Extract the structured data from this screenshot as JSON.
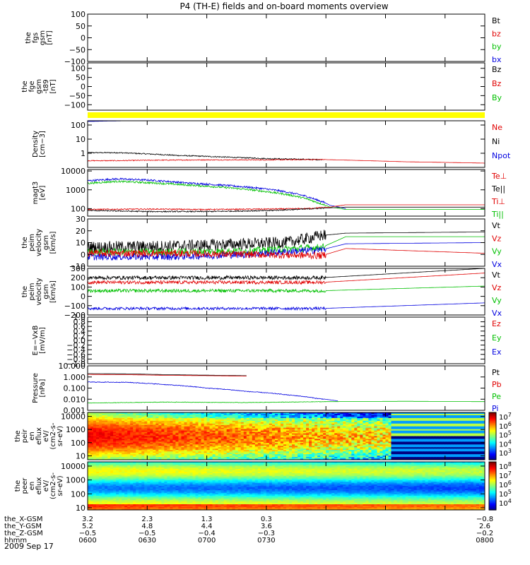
{
  "title": "P4 (TH-E) fields and on-board moments overview",
  "date": "2009 Sep 17",
  "colors": {
    "black": "#000000",
    "red": "#e00000",
    "green": "#00c000",
    "blue": "#0000e0",
    "yellow": "#ffff00"
  },
  "chart_data": [
    {
      "type": "line",
      "id": "fgs",
      "ylabel_lines": [
        "the",
        "fgs",
        "gsm",
        "[nT]"
      ],
      "ylim": [
        -100,
        100
      ],
      "yticks": [
        "100",
        "50",
        "0",
        "−50",
        "−100"
      ],
      "yvalues": [
        100,
        50,
        0,
        -50,
        -100
      ],
      "legend": [
        {
          "name": "Bt",
          "color": "black"
        },
        {
          "name": "bz",
          "color": "red"
        },
        {
          "name": "by",
          "color": "green"
        },
        {
          "name": "bx",
          "color": "blue"
        }
      ],
      "series": []
    },
    {
      "type": "line",
      "id": "fge",
      "ylabel_lines": [
        "the",
        "fge",
        "gsm",
        "-t89",
        "[nT]"
      ],
      "ylim": [
        -130,
        130
      ],
      "yticks": [
        "100",
        "50",
        "0",
        "−50",
        "−100"
      ],
      "yvalues": [
        100,
        50,
        0,
        -50,
        -100
      ],
      "legend": [
        {
          "name": "Bz",
          "color": "black"
        },
        {
          "name": "Bz",
          "color": "red"
        },
        {
          "name": "By",
          "color": "green"
        }
      ],
      "series": []
    },
    {
      "type": "bar",
      "id": "mode-bar",
      "color": "yellow"
    },
    {
      "type": "line",
      "id": "density",
      "yscale": "log",
      "ylabel_lines": [
        "Density",
        "[cm−3]"
      ],
      "ylim": [
        0.1,
        200
      ],
      "yticks": [
        "100",
        "10",
        "1"
      ],
      "yvalues": [
        100,
        10,
        1
      ],
      "legend": [
        {
          "name": "Ne",
          "color": "red"
        },
        {
          "name": "Ni",
          "color": "black"
        },
        {
          "name": "Npot",
          "color": "blue"
        }
      ],
      "series": [
        {
          "color": "black",
          "x": [
            600,
            615,
            630,
            645,
            660,
            675,
            690,
            705,
            718
          ],
          "y": [
            1.1,
            1.1,
            0.9,
            0.7,
            0.6,
            0.5,
            0.42,
            0.38,
            0.35
          ],
          "noise": 0.04
        },
        {
          "color": "red",
          "x": [
            600,
            615,
            630,
            660,
            690,
            718,
            740,
            760,
            800
          ],
          "y": [
            0.3,
            0.3,
            0.32,
            0.34,
            0.34,
            0.36,
            0.3,
            0.25,
            0.2
          ],
          "noise": 0.03
        },
        {
          "color": "blue",
          "x": [
            600,
            620
          ],
          "y": [
            180,
            200
          ],
          "noise": 0.0
        }
      ]
    },
    {
      "type": "line",
      "id": "temperature",
      "yscale": "log",
      "ylabel_lines": [
        "magt3",
        "[eV]"
      ],
      "ylim": [
        40,
        12000
      ],
      "yticks": [
        "10000",
        "1000",
        "100"
      ],
      "yvalues": [
        10000,
        1000,
        100
      ],
      "legend": [
        {
          "name": "Te⊥",
          "color": "red"
        },
        {
          "name": "Te||",
          "color": "black"
        },
        {
          "name": "Ti⊥",
          "color": "red"
        },
        {
          "name": "Ti||",
          "color": "green"
        }
      ],
      "series": [
        {
          "color": "blue",
          "x": [
            600,
            615,
            630,
            650,
            670,
            690,
            705,
            715,
            722,
            730
          ],
          "y": [
            3000,
            3800,
            3300,
            2300,
            1700,
            1100,
            600,
            300,
            150,
            100
          ],
          "noise": 0.05
        },
        {
          "color": "green",
          "x": [
            600,
            615,
            630,
            650,
            670,
            690,
            705,
            715,
            722,
            730,
            800
          ],
          "y": [
            2200,
            2800,
            2400,
            1800,
            1300,
            800,
            450,
            220,
            120,
            90,
            90
          ],
          "noise": 0.05
        },
        {
          "color": "red",
          "x": [
            600,
            630,
            660,
            690,
            710,
            722,
            730,
            800
          ],
          "y": [
            90,
            95,
            90,
            95,
            100,
            120,
            160,
            160
          ],
          "noise": 0.03
        },
        {
          "color": "black",
          "x": [
            600,
            630,
            660,
            690,
            710,
            722,
            730,
            800
          ],
          "y": [
            80,
            70,
            70,
            78,
            95,
            110,
            120,
            120
          ],
          "noise": 0.03
        }
      ]
    },
    {
      "type": "line",
      "id": "velocity-esa",
      "ylabel_lines": [
        "the",
        "peim",
        "velocity",
        "gsm",
        "[km/s]"
      ],
      "ylim": [
        -10,
        30
      ],
      "yticks": [
        "30",
        "20",
        "10",
        "0",
        "−10"
      ],
      "yvalues": [
        30,
        20,
        10,
        0,
        -10
      ],
      "legend": [
        {
          "name": "Vt",
          "color": "black"
        },
        {
          "name": "Vz",
          "color": "red"
        },
        {
          "name": "Vy",
          "color": "green"
        },
        {
          "name": "Vx",
          "color": "blue"
        }
      ],
      "series": [
        {
          "color": "black",
          "x": [
            600,
            640,
            680,
            700,
            718,
            730,
            800
          ],
          "y": [
            6,
            7,
            9,
            10,
            16,
            18,
            19
          ],
          "noise": 5.0
        },
        {
          "color": "green",
          "x": [
            600,
            640,
            680,
            718,
            730,
            800
          ],
          "y": [
            2,
            2,
            3,
            6,
            15,
            15
          ],
          "noise": 3.0
        },
        {
          "color": "blue",
          "x": [
            600,
            640,
            680,
            718,
            730,
            800
          ],
          "y": [
            -2,
            -2,
            0,
            4,
            9,
            10
          ],
          "noise": 3.0
        },
        {
          "color": "red",
          "x": [
            600,
            640,
            680,
            718,
            730,
            800
          ],
          "y": [
            1,
            1,
            0,
            -1,
            5,
            1
          ],
          "noise": 3.0
        }
      ]
    },
    {
      "type": "line",
      "id": "velocity-mom",
      "ylabel_lines": [
        "the",
        "peim",
        "velocity",
        "gsm",
        "[km/s]"
      ],
      "ylim": [
        -200,
        300
      ],
      "yticks": [
        "300",
        "200",
        "100",
        "0",
        "−100",
        "−200"
      ],
      "yvalues": [
        300,
        200,
        100,
        0,
        -100,
        -200
      ],
      "legend": [
        {
          "name": "Vt",
          "color": "black"
        },
        {
          "name": "Vz",
          "color": "red"
        },
        {
          "name": "Vy",
          "color": "green"
        },
        {
          "name": "Vx",
          "color": "blue"
        }
      ],
      "series": [
        {
          "color": "black",
          "x": [
            600,
            718,
            800
          ],
          "y": [
            200,
            200,
            300
          ],
          "noise": 20.0
        },
        {
          "color": "red",
          "x": [
            600,
            718,
            800
          ],
          "y": [
            150,
            150,
            250
          ],
          "noise": 18.0
        },
        {
          "color": "green",
          "x": [
            600,
            718,
            800
          ],
          "y": [
            60,
            60,
            110
          ],
          "noise": 18.0
        },
        {
          "color": "blue",
          "x": [
            600,
            718,
            800
          ],
          "y": [
            -130,
            -130,
            -70
          ],
          "noise": 15.0
        }
      ]
    },
    {
      "type": "line",
      "id": "efield",
      "ylabel_lines": [
        "E=−VxB",
        "[mV/m]"
      ],
      "ylim": [
        -1,
        1
      ],
      "yticks": [
        "1.0",
        "0.8",
        "0.6",
        "0.4",
        "0.2",
        "0.0",
        "−0.2",
        "−0.4",
        "−0.6",
        "−0.8",
        "−1.0"
      ],
      "yvalues": [
        1.0,
        0.8,
        0.6,
        0.4,
        0.2,
        0.0,
        -0.2,
        -0.4,
        -0.6,
        -0.8,
        -1.0
      ],
      "legend": [
        {
          "name": "Ez",
          "color": "red"
        },
        {
          "name": "Ey",
          "color": "green"
        },
        {
          "name": "Ex",
          "color": "blue"
        }
      ],
      "series": []
    },
    {
      "type": "line",
      "id": "pressure",
      "yscale": "log",
      "ylabel_lines": [
        "Pressure",
        "[nPa]"
      ],
      "ylim": [
        0.001,
        10
      ],
      "yticks": [
        "10.000",
        "1.000",
        "0.100",
        "0.010",
        "0.001"
      ],
      "yvalues": [
        10,
        1,
        0.1,
        0.01,
        0.001
      ],
      "legend": [
        {
          "name": "Pt",
          "color": "black"
        },
        {
          "name": "Pb",
          "color": "red"
        },
        {
          "name": "Pe",
          "color": "green"
        },
        {
          "name": "Pi",
          "color": "blue"
        }
      ],
      "series": [
        {
          "color": "black",
          "x": [
            600,
            620,
            640,
            680
          ],
          "y": [
            2.0,
            1.9,
            1.6,
            1.3
          ],
          "noise": 0.0
        },
        {
          "color": "red",
          "x": [
            600,
            620,
            640,
            680
          ],
          "y": [
            1.7,
            1.6,
            1.4,
            1.2
          ],
          "noise": 0.0
        },
        {
          "color": "blue",
          "x": [
            600,
            620,
            640,
            660,
            680,
            700,
            715,
            726
          ],
          "y": [
            0.35,
            0.33,
            0.2,
            0.1,
            0.05,
            0.025,
            0.012,
            0.007
          ],
          "noise": 0.03
        },
        {
          "color": "green",
          "x": [
            600,
            640,
            680,
            720,
            760,
            800
          ],
          "y": [
            0.0045,
            0.0055,
            0.005,
            0.006,
            0.0065,
            0.006
          ],
          "noise": 0.02
        }
      ]
    },
    {
      "type": "heatmap",
      "id": "peir",
      "yscale": "log",
      "ylabel_lines": [
        "the",
        "peir",
        "en",
        "eflux",
        "eV/",
        "(cm2-s-",
        "sr-eV)"
      ],
      "ylim": [
        5,
        20000
      ],
      "yticks": [
        "10000",
        "1000",
        "100",
        "10"
      ],
      "yvalues": [
        10000,
        1000,
        100,
        10
      ],
      "colorbar_labels": [
        "10^7",
        "10^6",
        "10^5",
        "10^4",
        "10^3"
      ],
      "colorbar_exp": [
        "7",
        "6",
        "5",
        "4",
        "3"
      ],
      "zlim": [
        3,
        7.3
      ]
    },
    {
      "type": "heatmap",
      "id": "peer",
      "yscale": "log",
      "ylabel_lines": [
        "the",
        "peer",
        "en",
        "eflux",
        "eV/",
        "(cm2-s-",
        "sr-eV)"
      ],
      "ylim": [
        7,
        20000
      ],
      "yticks": [
        "10000",
        "1000",
        "100",
        "10"
      ],
      "yvalues": [
        10000,
        1000,
        100,
        10
      ],
      "colorbar_labels": [
        "10^8",
        "10^7",
        "10^6",
        "10^5",
        "10^4"
      ],
      "colorbar_exp": [
        "8",
        "7",
        "6",
        "5",
        "4"
      ],
      "zlim": [
        3.5,
        8.3
      ]
    }
  ],
  "x_axis": {
    "xlim": [
      600,
      800
    ],
    "tick_positions": [
      600,
      630,
      660,
      690,
      720,
      750,
      780,
      800
    ],
    "major_tick_labels": [
      {
        "label": "the_X-GSM",
        "values": [
          "3.2",
          "2.3",
          "1.3",
          "0.3",
          "−0.8"
        ]
      },
      {
        "label": "the_Y-GSM",
        "values": [
          "5.2",
          "4.8",
          "4.4",
          "3.6",
          "2.6"
        ]
      },
      {
        "label": "the_Z-GSM",
        "values": [
          "−0.5",
          "−0.5",
          "−0.4",
          "−0.3",
          "−0.2"
        ]
      },
      {
        "label": "hhmm",
        "values": [
          "0600",
          "0630",
          "0700",
          "0730",
          "0800"
        ]
      }
    ]
  }
}
